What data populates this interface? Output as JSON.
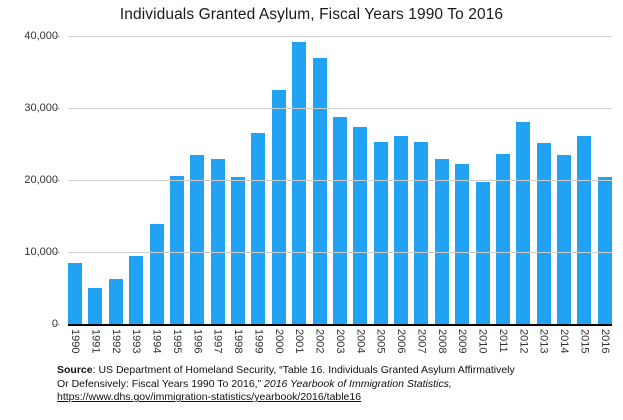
{
  "title": "Individuals Granted Asylum, Fiscal Years 1990 To 2016",
  "colors": {
    "bar": "#22A2F2",
    "gridline": "#cccccc",
    "axis_line": "#000000",
    "title_text": "#1a1a1a",
    "tick_text": "#333333"
  },
  "y_axis": {
    "tick_labels": [
      "40,000",
      "30,000",
      "20,000",
      "10,000",
      "0"
    ],
    "tick_values": [
      40000,
      30000,
      20000,
      10000,
      0
    ]
  },
  "source": {
    "label": "Source",
    "line1_rest": ": US Department of Homeland Security, “Table 16. Individuals Granted Asylum Affirmatively",
    "line2_plain": "Or Defensively: Fiscal Years 1990 To 2016,” ",
    "line2_italic": "2016 Yearbook of Immigration Statistics,",
    "link_text": "https://www.dhs.gov/immigration-statistics/yearbook/2016/table16"
  },
  "chart_data": {
    "type": "bar",
    "title": "Individuals Granted Asylum, Fiscal Years 1990 To 2016",
    "categories": [
      "1990",
      "1991",
      "1992",
      "1993",
      "1994",
      "1995",
      "1996",
      "1997",
      "1998",
      "1999",
      "2000",
      "2001",
      "2002",
      "2003",
      "2004",
      "2005",
      "2006",
      "2007",
      "2008",
      "2009",
      "2010",
      "2011",
      "2012",
      "2013",
      "2014",
      "2015",
      "2016"
    ],
    "values": [
      8472,
      5035,
      6310,
      9414,
      13847,
      20582,
      23498,
      22939,
      20442,
      26550,
      32513,
      39146,
      36980,
      28714,
      27321,
      25257,
      26113,
      25270,
      22930,
      22219,
      19730,
      23669,
      28026,
      25199,
      23533,
      26124,
      20455
    ],
    "xlabel": "",
    "ylabel": "",
    "ylim": [
      0,
      40000
    ],
    "ytick_interval": 10000,
    "grid": true,
    "legend": false,
    "bar_color": "#22A2F2"
  }
}
